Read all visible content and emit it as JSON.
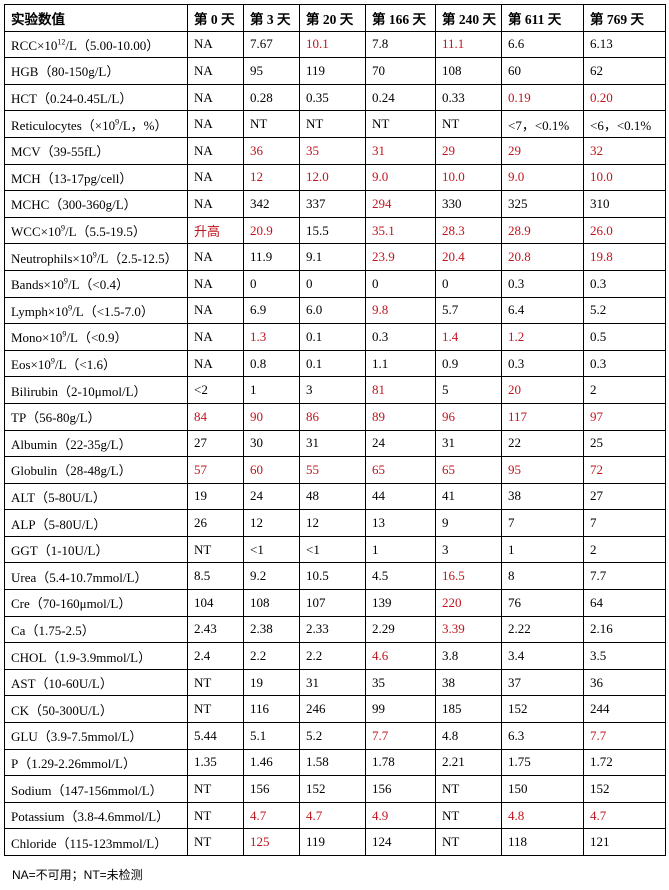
{
  "headers": [
    "实验数值",
    "第 0 天",
    "第 3 天",
    "第 20 天",
    "第 166 天",
    "第 240 天",
    "第 611 天",
    "第 769 天"
  ],
  "rows": [
    {
      "label": [
        "RCC×10",
        "12",
        "/L（5.00-10.00）"
      ],
      "cells": [
        "NA",
        "7.67",
        "10.1",
        "7.8",
        "11.1",
        "6.6",
        "6.13"
      ],
      "red": [
        2,
        4
      ]
    },
    {
      "label": [
        "HGB（80-150g/L）"
      ],
      "cells": [
        "NA",
        "95",
        "119",
        "70",
        "108",
        "60",
        "62"
      ],
      "red": []
    },
    {
      "label": [
        "HCT（0.24-0.45L/L）"
      ],
      "cells": [
        "NA",
        "0.28",
        "0.35",
        "0.24",
        "0.33",
        "0.19",
        "0.20"
      ],
      "red": [
        5,
        6
      ]
    },
    {
      "label": [
        "Reticulocytes（×10",
        "9",
        "/L，%）"
      ],
      "cells": [
        "NA",
        "NT",
        "NT",
        "NT",
        "NT",
        "<7，<0.1%",
        "<6，<0.1%"
      ],
      "red": []
    },
    {
      "label": [
        "MCV（39-55fL）"
      ],
      "cells": [
        "NA",
        "36",
        "35",
        "31",
        "29",
        "29",
        "32"
      ],
      "red": [
        1,
        2,
        3,
        4,
        5,
        6
      ]
    },
    {
      "label": [
        "MCH（13-17pg/cell）"
      ],
      "cells": [
        "NA",
        "12",
        "12.0",
        "9.0",
        "10.0",
        "9.0",
        "10.0"
      ],
      "red": [
        1,
        2,
        3,
        4,
        5,
        6
      ]
    },
    {
      "label": [
        "MCHC（300-360g/L）"
      ],
      "cells": [
        "NA",
        "342",
        "337",
        "294",
        "330",
        "325",
        "310"
      ],
      "red": [
        3
      ]
    },
    {
      "label": [
        "WCC×10",
        "9",
        "/L（5.5-19.5）"
      ],
      "cells": [
        "升高",
        "20.9",
        "15.5",
        "35.1",
        "28.3",
        "28.9",
        "26.0"
      ],
      "red": [
        0,
        1,
        3,
        4,
        5,
        6
      ]
    },
    {
      "label": [
        "Neutrophils×10",
        "9",
        "/L（2.5-12.5）"
      ],
      "cells": [
        "NA",
        "11.9",
        "9.1",
        "23.9",
        "20.4",
        "20.8",
        "19.8"
      ],
      "red": [
        3,
        4,
        5,
        6
      ]
    },
    {
      "label": [
        "Bands×10",
        "9",
        "/L（<0.4）"
      ],
      "cells": [
        "NA",
        "0",
        "0",
        "0",
        "0",
        "0.3",
        "0.3"
      ],
      "red": []
    },
    {
      "label": [
        "Lymph×10",
        "9",
        "/L（<1.5-7.0）"
      ],
      "cells": [
        "NA",
        "6.9",
        "6.0",
        "9.8",
        "5.7",
        "6.4",
        "5.2"
      ],
      "red": [
        3
      ]
    },
    {
      "label": [
        "Mono×10",
        "9",
        "/L（<0.9）"
      ],
      "cells": [
        "NA",
        "1.3",
        "0.1",
        "0.3",
        "1.4",
        "1.2",
        "0.5"
      ],
      "red": [
        1,
        4,
        5
      ]
    },
    {
      "label": [
        "Eos×10",
        "9",
        "/L（<1.6）"
      ],
      "cells": [
        "NA",
        "0.8",
        "0.1",
        "1.1",
        "0.9",
        "0.3",
        "0.3"
      ],
      "red": []
    },
    {
      "label": [
        "Bilirubin（2-10μmol/L）"
      ],
      "cells": [
        "<2",
        "1",
        "3",
        "81",
        "5",
        "20",
        "2"
      ],
      "red": [
        3,
        5
      ]
    },
    {
      "label": [
        "TP（56-80g/L）"
      ],
      "cells": [
        "84",
        "90",
        "86",
        "89",
        "96",
        "117",
        "97"
      ],
      "red": [
        0,
        1,
        2,
        3,
        4,
        5,
        6
      ]
    },
    {
      "label": [
        "Albumin（22-35g/L）"
      ],
      "cells": [
        "27",
        "30",
        "31",
        "24",
        "31",
        "22",
        "25"
      ],
      "red": []
    },
    {
      "label": [
        "Globulin（28-48g/L）"
      ],
      "cells": [
        "57",
        "60",
        "55",
        "65",
        "65",
        "95",
        "72"
      ],
      "red": [
        0,
        1,
        2,
        3,
        4,
        5,
        6
      ]
    },
    {
      "label": [
        "ALT（5-80U/L）"
      ],
      "cells": [
        "19",
        "24",
        "48",
        "44",
        "41",
        "38",
        "27"
      ],
      "red": []
    },
    {
      "label": [
        "ALP（5-80U/L）"
      ],
      "cells": [
        "26",
        "12",
        "12",
        "13",
        "9",
        "7",
        "7"
      ],
      "red": []
    },
    {
      "label": [
        "GGT（1-10U/L）"
      ],
      "cells": [
        "NT",
        "<1",
        "<1",
        "1",
        "3",
        "1",
        "2"
      ],
      "red": []
    },
    {
      "label": [
        "Urea（5.4-10.7mmol/L）"
      ],
      "cells": [
        "8.5",
        "9.2",
        "10.5",
        "4.5",
        "16.5",
        "8",
        "7.7"
      ],
      "red": [
        4
      ]
    },
    {
      "label": [
        "Cre（70-160μmol/L）"
      ],
      "cells": [
        "104",
        "108",
        "107",
        "139",
        "220",
        "76",
        "64"
      ],
      "red": [
        4
      ]
    },
    {
      "label": [
        "Ca（1.75-2.5）"
      ],
      "cells": [
        "2.43",
        "2.38",
        "2.33",
        "2.29",
        "3.39",
        "2.22",
        "2.16"
      ],
      "red": [
        4
      ]
    },
    {
      "label": [
        "CHOL（1.9-3.9mmol/L）"
      ],
      "cells": [
        "2.4",
        "2.2",
        "2.2",
        "4.6",
        "3.8",
        "3.4",
        "3.5"
      ],
      "red": [
        3
      ]
    },
    {
      "label": [
        "AST（10-60U/L）"
      ],
      "cells": [
        "NT",
        "19",
        "31",
        "35",
        "38",
        "37",
        "36"
      ],
      "red": []
    },
    {
      "label": [
        "CK（50-300U/L）"
      ],
      "cells": [
        "NT",
        "116",
        "246",
        "99",
        "185",
        "152",
        "244"
      ],
      "red": []
    },
    {
      "label": [
        "GLU（3.9-7.5mmol/L）"
      ],
      "cells": [
        "5.44",
        "5.1",
        "5.2",
        "7.7",
        "4.8",
        "6.3",
        "7.7"
      ],
      "red": [
        3,
        6
      ]
    },
    {
      "label": [
        "P（1.29-2.26mmol/L）"
      ],
      "cells": [
        "1.35",
        "1.46",
        "1.58",
        "1.78",
        "2.21",
        "1.75",
        "1.72"
      ],
      "red": []
    },
    {
      "label": [
        "Sodium（147-156mmol/L）"
      ],
      "cells": [
        "NT",
        "156",
        "152",
        "156",
        "NT",
        "150",
        "152"
      ],
      "red": []
    },
    {
      "label": [
        "Potassium（3.8-4.6mmol/L）"
      ],
      "cells": [
        "NT",
        "4.7",
        "4.7",
        "4.9",
        "NT",
        "4.8",
        "4.7"
      ],
      "red": [
        1,
        2,
        3,
        5,
        6
      ]
    },
    {
      "label": [
        "Chloride（115-123mmol/L）"
      ],
      "cells": [
        "NT",
        "125",
        "119",
        "124",
        "NT",
        "118",
        "121"
      ],
      "red": [
        1
      ]
    }
  ],
  "footnote": "NA=不可用；NT=未检测",
  "colors": {
    "abnormal": "#c0141e",
    "normal": "#000000",
    "border": "#000000"
  }
}
